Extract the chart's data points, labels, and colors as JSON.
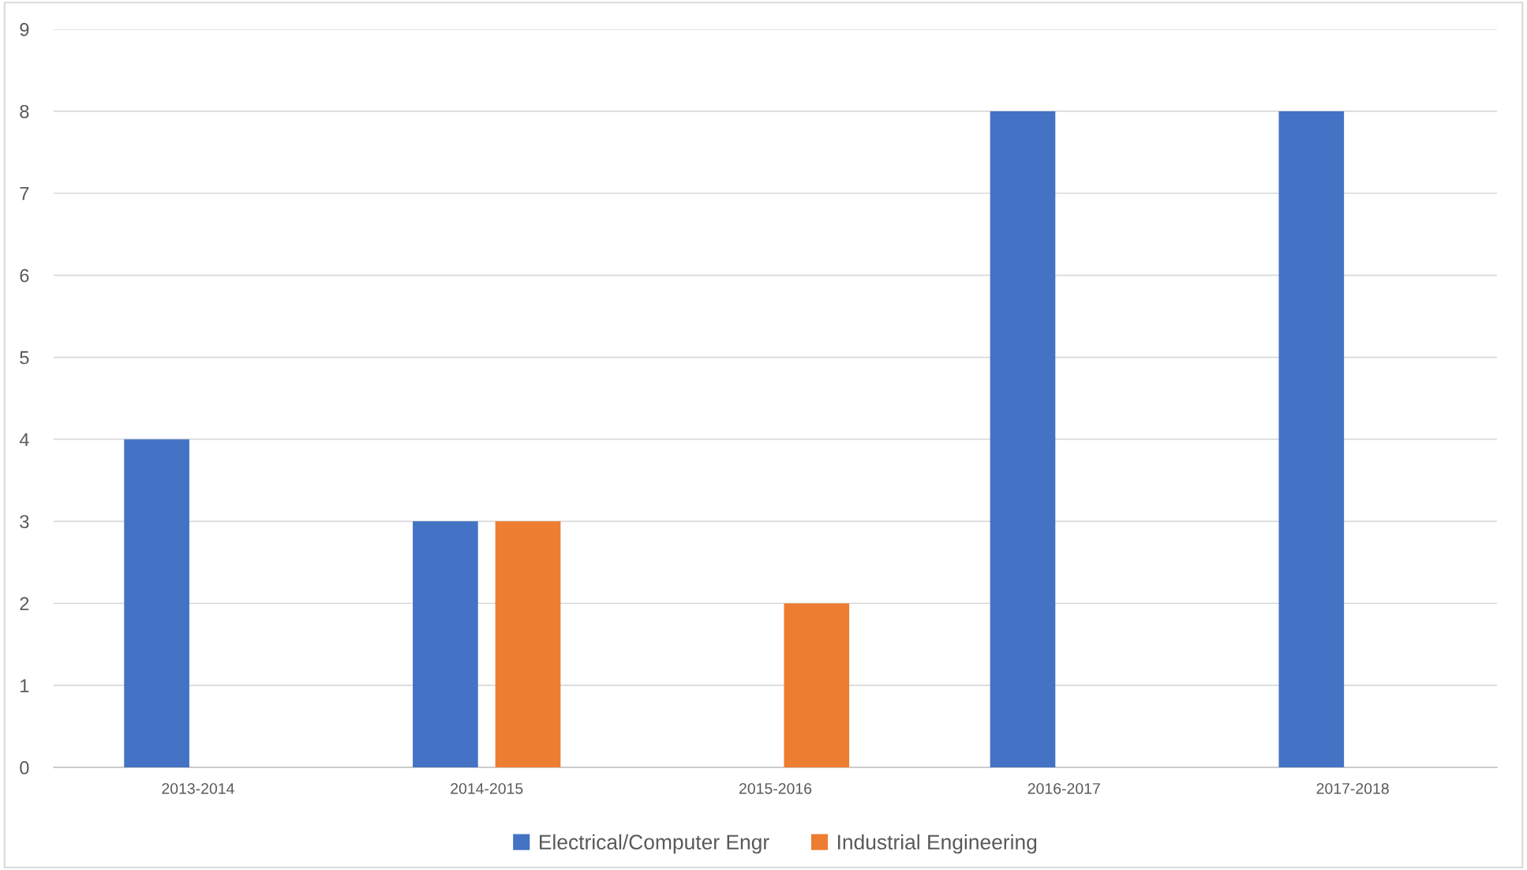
{
  "chart_data": {
    "type": "bar",
    "categories": [
      "2013-2014",
      "2014-2015",
      "2015-2016",
      "2016-2017",
      "2017-2018"
    ],
    "series": [
      {
        "name": "Electrical/Computer Engr",
        "color": "#4472c4",
        "values": [
          4,
          3,
          null,
          8,
          8
        ]
      },
      {
        "name": "Industrial Engineering",
        "color": "#ed7d31",
        "values": [
          null,
          3,
          2,
          null,
          null
        ]
      }
    ],
    "ylim": [
      0,
      9
    ],
    "yticks": [
      0,
      1,
      2,
      3,
      4,
      5,
      6,
      7,
      8,
      9
    ],
    "grid": "y",
    "legend": "bottom"
  }
}
